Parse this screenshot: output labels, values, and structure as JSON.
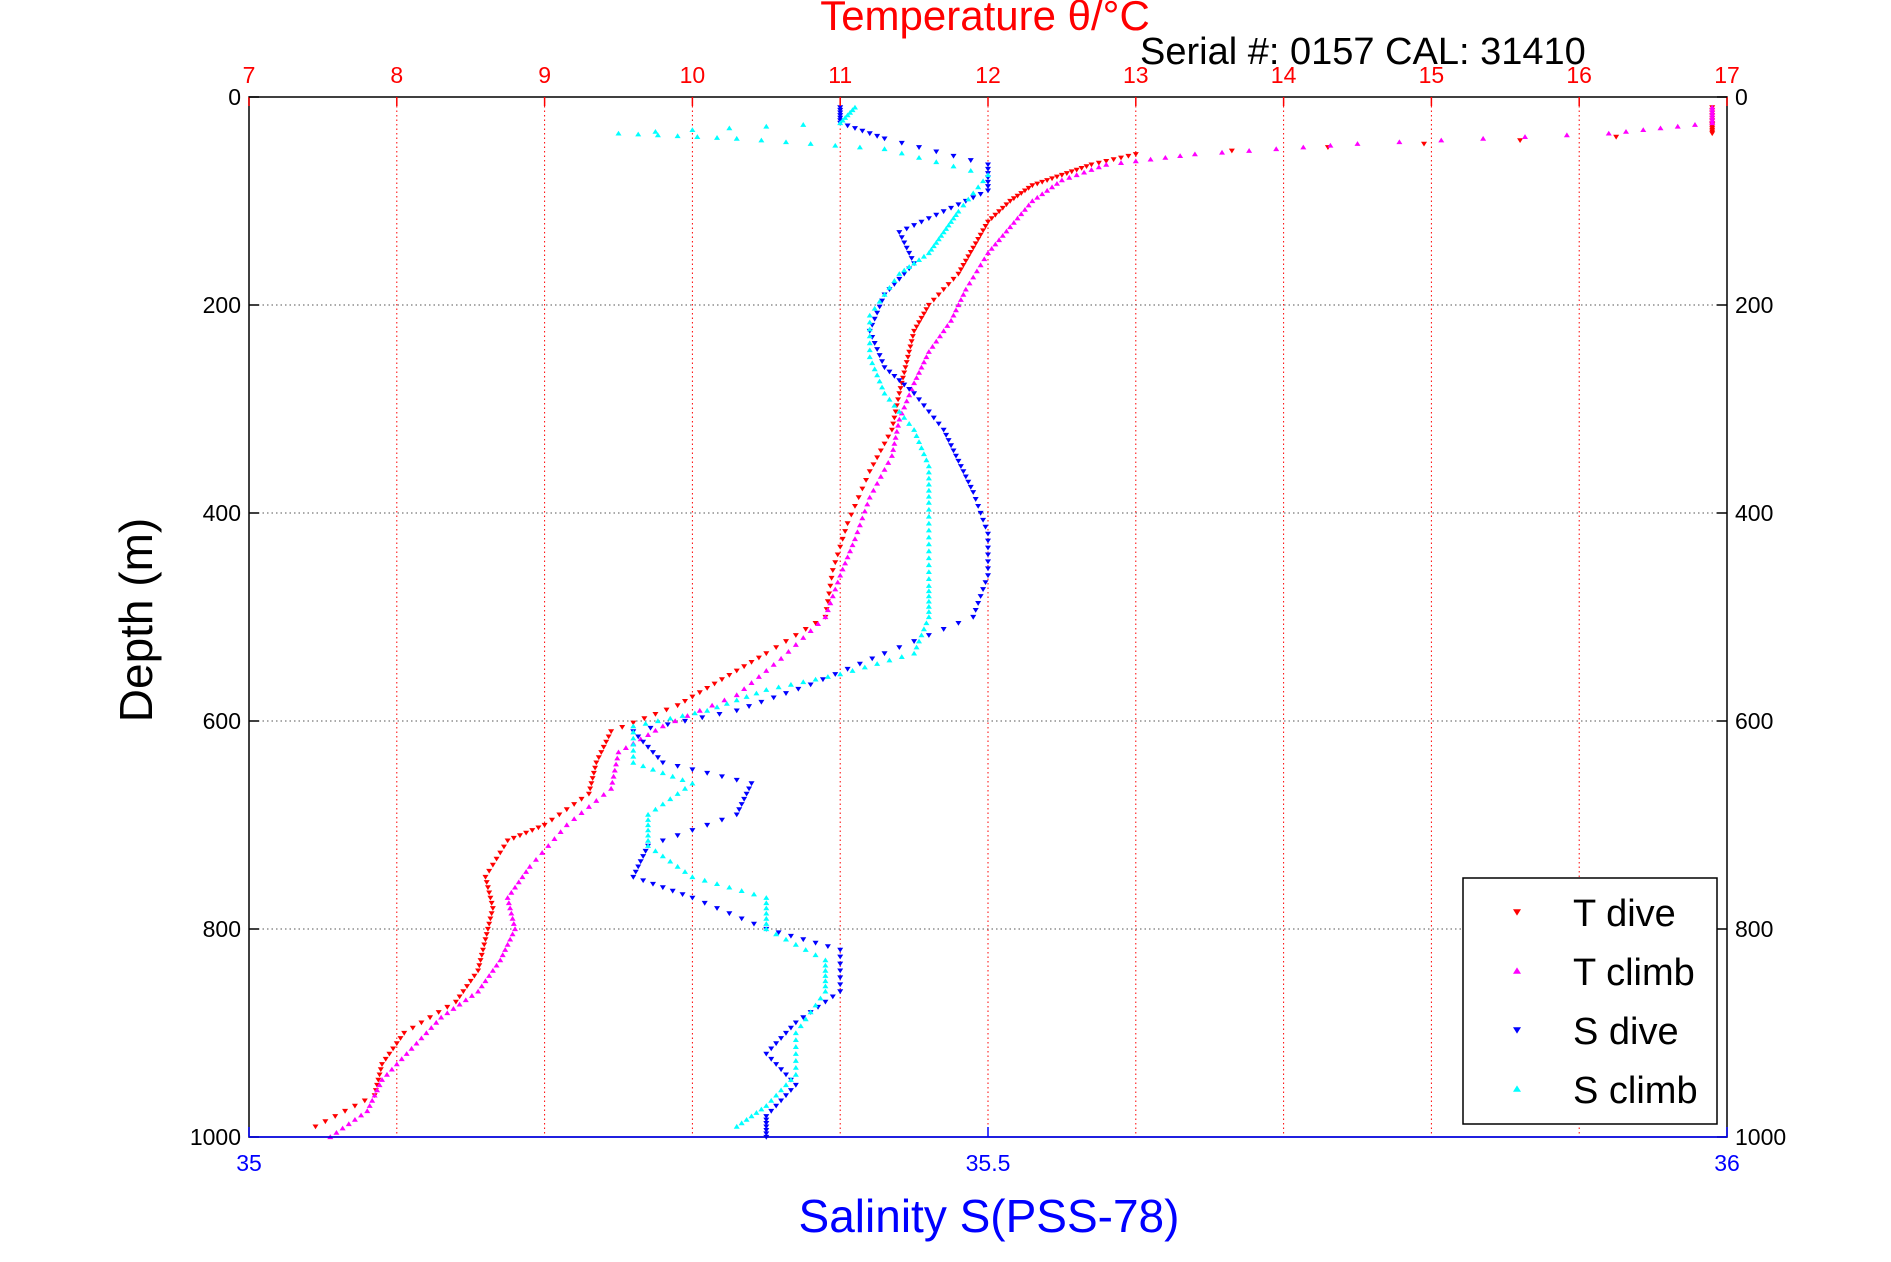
{
  "chart_data": {
    "type": "scatter",
    "title": "Temperature θ/°C",
    "subtitle": "Serial #: 0157  CAL: 31410",
    "xlabel_bottom": "Salinity S(PSS-78)",
    "ylabel": "Depth (m)",
    "x_top": {
      "label": "Temperature θ/°C",
      "range": [
        7,
        17
      ],
      "ticks": [
        "7",
        "8",
        "9",
        "10",
        "11",
        "12",
        "13",
        "14",
        "15",
        "16",
        "17"
      ],
      "color": "#ff0000"
    },
    "x_bottom": {
      "label": "Salinity S(PSS-78)",
      "range": [
        35,
        36
      ],
      "ticks": [
        "35",
        "35.5",
        "36"
      ],
      "color": "#0000ff"
    },
    "y": {
      "label": "Depth (m)",
      "range": [
        0,
        1000
      ],
      "reversed": true,
      "ticks": [
        "0",
        "200",
        "400",
        "600",
        "800",
        "1000"
      ]
    },
    "grid": true,
    "legend": {
      "position": "bottom-right",
      "entries": [
        "T dive",
        "T climb",
        "S dive",
        "S climb"
      ]
    },
    "series": [
      {
        "name": "T dive",
        "axis": "temperature",
        "color": "#ff0000",
        "marker": "triangle-down",
        "points": [
          [
            16.9,
            10
          ],
          [
            16.9,
            25
          ],
          [
            16.9,
            35
          ],
          [
            13.0,
            55
          ],
          [
            12.7,
            65
          ],
          [
            12.5,
            75
          ],
          [
            12.3,
            85
          ],
          [
            12.15,
            100
          ],
          [
            12.0,
            120
          ],
          [
            11.9,
            145
          ],
          [
            11.8,
            170
          ],
          [
            11.6,
            200
          ],
          [
            11.5,
            225
          ],
          [
            11.45,
            255
          ],
          [
            11.4,
            285
          ],
          [
            11.35,
            320
          ],
          [
            11.2,
            360
          ],
          [
            11.05,
            410
          ],
          [
            10.95,
            455
          ],
          [
            10.9,
            500
          ],
          [
            10.5,
            535
          ],
          [
            10.2,
            560
          ],
          [
            9.9,
            585
          ],
          [
            9.45,
            610
          ],
          [
            9.35,
            640
          ],
          [
            9.3,
            670
          ],
          [
            9.0,
            700
          ],
          [
            8.75,
            715
          ],
          [
            8.6,
            750
          ],
          [
            8.65,
            780
          ],
          [
            8.6,
            810
          ],
          [
            8.55,
            840
          ],
          [
            8.4,
            870
          ],
          [
            8.05,
            900
          ],
          [
            7.9,
            930
          ],
          [
            7.85,
            960
          ],
          [
            7.45,
            990
          ]
        ]
      },
      {
        "name": "T climb",
        "axis": "temperature",
        "color": "#ff00ff",
        "marker": "triangle-up",
        "points": [
          [
            16.9,
            10
          ],
          [
            16.9,
            25
          ],
          [
            16.2,
            35
          ],
          [
            14.5,
            45
          ],
          [
            13.4,
            55
          ],
          [
            12.8,
            65
          ],
          [
            12.5,
            80
          ],
          [
            12.3,
            100
          ],
          [
            12.15,
            125
          ],
          [
            12.0,
            150
          ],
          [
            11.85,
            185
          ],
          [
            11.75,
            215
          ],
          [
            11.6,
            245
          ],
          [
            11.5,
            275
          ],
          [
            11.4,
            310
          ],
          [
            11.35,
            345
          ],
          [
            11.2,
            385
          ],
          [
            11.1,
            425
          ],
          [
            11.0,
            460
          ],
          [
            10.9,
            500
          ],
          [
            10.6,
            540
          ],
          [
            10.3,
            575
          ],
          [
            9.8,
            605
          ],
          [
            9.5,
            630
          ],
          [
            9.45,
            665
          ],
          [
            9.15,
            700
          ],
          [
            8.9,
            740
          ],
          [
            8.75,
            770
          ],
          [
            8.8,
            800
          ],
          [
            8.7,
            830
          ],
          [
            8.55,
            860
          ],
          [
            8.3,
            885
          ],
          [
            8.1,
            915
          ],
          [
            7.9,
            945
          ],
          [
            7.8,
            975
          ],
          [
            7.55,
            1000
          ]
        ]
      },
      {
        "name": "S dive",
        "axis": "salinity",
        "color": "#0000ff",
        "marker": "triangle-down",
        "points": [
          [
            35.4,
            10
          ],
          [
            35.4,
            25
          ],
          [
            35.43,
            40
          ],
          [
            35.5,
            65
          ],
          [
            35.5,
            90
          ],
          [
            35.47,
            110
          ],
          [
            35.44,
            130
          ],
          [
            35.45,
            160
          ],
          [
            35.43,
            190
          ],
          [
            35.42,
            225
          ],
          [
            35.43,
            260
          ],
          [
            35.45,
            285
          ],
          [
            35.47,
            320
          ],
          [
            35.48,
            350
          ],
          [
            35.49,
            380
          ],
          [
            35.5,
            420
          ],
          [
            35.5,
            460
          ],
          [
            35.49,
            500
          ],
          [
            35.43,
            535
          ],
          [
            35.38,
            565
          ],
          [
            35.33,
            590
          ],
          [
            35.26,
            610
          ],
          [
            35.28,
            640
          ],
          [
            35.34,
            660
          ],
          [
            35.33,
            690
          ],
          [
            35.27,
            720
          ],
          [
            35.26,
            750
          ],
          [
            35.3,
            770
          ],
          [
            35.35,
            800
          ],
          [
            35.4,
            820
          ],
          [
            35.4,
            860
          ],
          [
            35.37,
            890
          ],
          [
            35.35,
            920
          ],
          [
            35.37,
            950
          ],
          [
            35.35,
            980
          ],
          [
            35.35,
            1000
          ]
        ]
      },
      {
        "name": "S climb",
        "axis": "salinity",
        "color": "#00ffff",
        "marker": "triangle-up",
        "points": [
          [
            35.41,
            10
          ],
          [
            35.4,
            25
          ],
          [
            35.25,
            35
          ],
          [
            35.33,
            40
          ],
          [
            35.43,
            50
          ],
          [
            35.5,
            75
          ],
          [
            35.48,
            110
          ],
          [
            35.47,
            130
          ],
          [
            35.46,
            150
          ],
          [
            35.44,
            170
          ],
          [
            35.42,
            210
          ],
          [
            35.42,
            250
          ],
          [
            35.43,
            285
          ],
          [
            35.45,
            320
          ],
          [
            35.46,
            355
          ],
          [
            35.46,
            390
          ],
          [
            35.46,
            430
          ],
          [
            35.46,
            470
          ],
          [
            35.46,
            500
          ],
          [
            35.45,
            535
          ],
          [
            35.4,
            555
          ],
          [
            35.35,
            570
          ],
          [
            35.31,
            590
          ],
          [
            35.26,
            605
          ],
          [
            35.26,
            640
          ],
          [
            35.3,
            660
          ],
          [
            35.27,
            690
          ],
          [
            35.27,
            720
          ],
          [
            35.3,
            750
          ],
          [
            35.35,
            770
          ],
          [
            35.35,
            800
          ],
          [
            35.39,
            830
          ],
          [
            35.39,
            860
          ],
          [
            35.37,
            900
          ],
          [
            35.37,
            940
          ],
          [
            35.35,
            970
          ],
          [
            35.33,
            990
          ]
        ]
      }
    ]
  }
}
